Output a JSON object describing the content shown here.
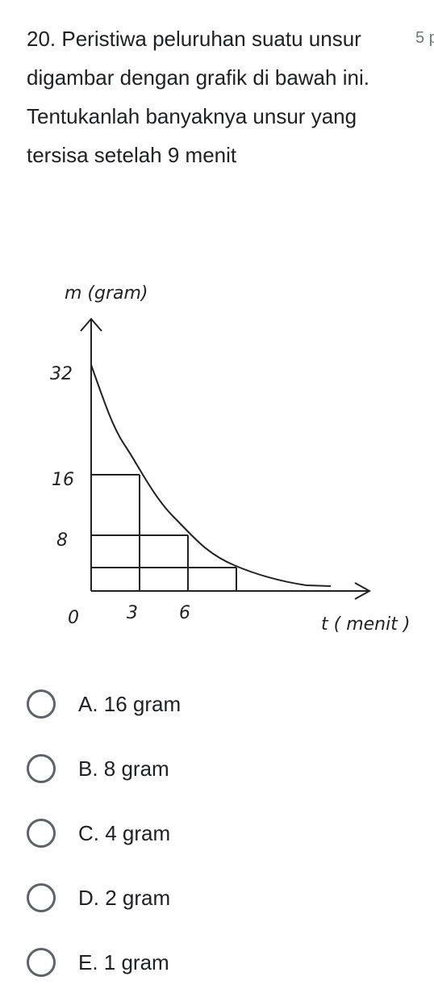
{
  "question": {
    "text": "20. Peristiwa peluruhan suatu unsur digambar dengan grafik di bawah ini. Tentukanlah banyaknya unsur yang tersisa setelah 9 menit",
    "points": "5 p"
  },
  "graph": {
    "y_label": "m (gram)",
    "x_label": "t ( menit )",
    "y_ticks": [
      "32",
      "16",
      "8"
    ],
    "x_ticks": [
      "0",
      "3",
      "6"
    ]
  },
  "options": [
    "A. 16 gram",
    "B. 8 gram",
    "C. 4 gram",
    "D. 2 gram",
    "E. 1 gram"
  ]
}
